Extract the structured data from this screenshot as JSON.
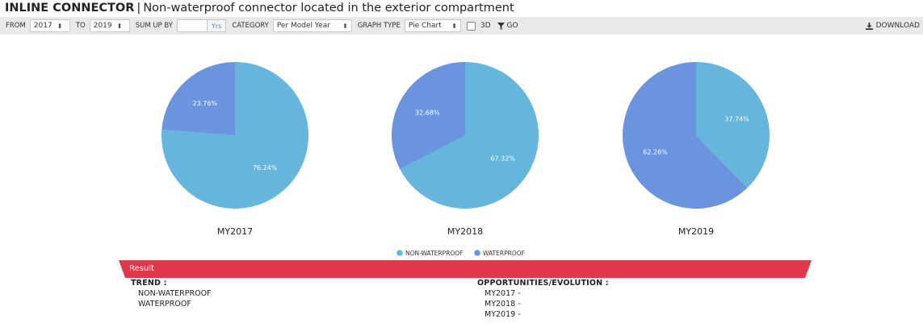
{
  "header": {
    "title_bold": "INLINE CONNECTOR",
    "separator": "|",
    "title_rest": "Non-waterproof connector located in the exterior compartment"
  },
  "toolbar": {
    "from_label": "FROM",
    "from_value": "2017",
    "to_label": "TO",
    "to_value": "2019",
    "sumup_label": "SUM UP BY",
    "sumup_value": "",
    "sumup_addon": "Yrs",
    "category_label": "CATEGORY",
    "category_value": "Per Model Year",
    "graphtype_label": "GRAPH TYPE",
    "graphtype_value": "Pie Chart",
    "three_d_label": "3D",
    "go_label": "GO",
    "download_label": "DOWNLOAD"
  },
  "chart_data": {
    "type": "pie",
    "legend_position": "bottom",
    "colors": {
      "NON-WATERPROOF": "#66b5dc",
      "WATERPROOF": "#6a94dd"
    },
    "legend": [
      "NON-WATERPROOF",
      "WATERPROOF"
    ],
    "pies": [
      {
        "title": "MY2017",
        "slices": [
          {
            "name": "NON-WATERPROOF",
            "value": 76.24,
            "label": "76.24%"
          },
          {
            "name": "WATERPROOF",
            "value": 23.76,
            "label": "23.76%"
          }
        ]
      },
      {
        "title": "MY2018",
        "slices": [
          {
            "name": "NON-WATERPROOF",
            "value": 67.32,
            "label": "67.32%"
          },
          {
            "name": "WATERPROOF",
            "value": 32.68,
            "label": "32.68%"
          }
        ]
      },
      {
        "title": "MY2019",
        "slices": [
          {
            "name": "NON-WATERPROOF",
            "value": 37.74,
            "label": "37.74%"
          },
          {
            "name": "WATERPROOF",
            "value": 62.26,
            "label": "62.26%"
          }
        ]
      }
    ]
  },
  "result": {
    "bar_label": "Result",
    "bar_color": "#e0384a",
    "trend_heading": "TREND :",
    "trend_items": [
      "NON-WATERPROOF",
      "WATERPROOF"
    ],
    "opp_heading": "OPPORTUNITIES/EVOLUTION :",
    "opp_items": [
      "MY2017 -",
      "MY2018 -",
      "MY2019 -"
    ]
  }
}
